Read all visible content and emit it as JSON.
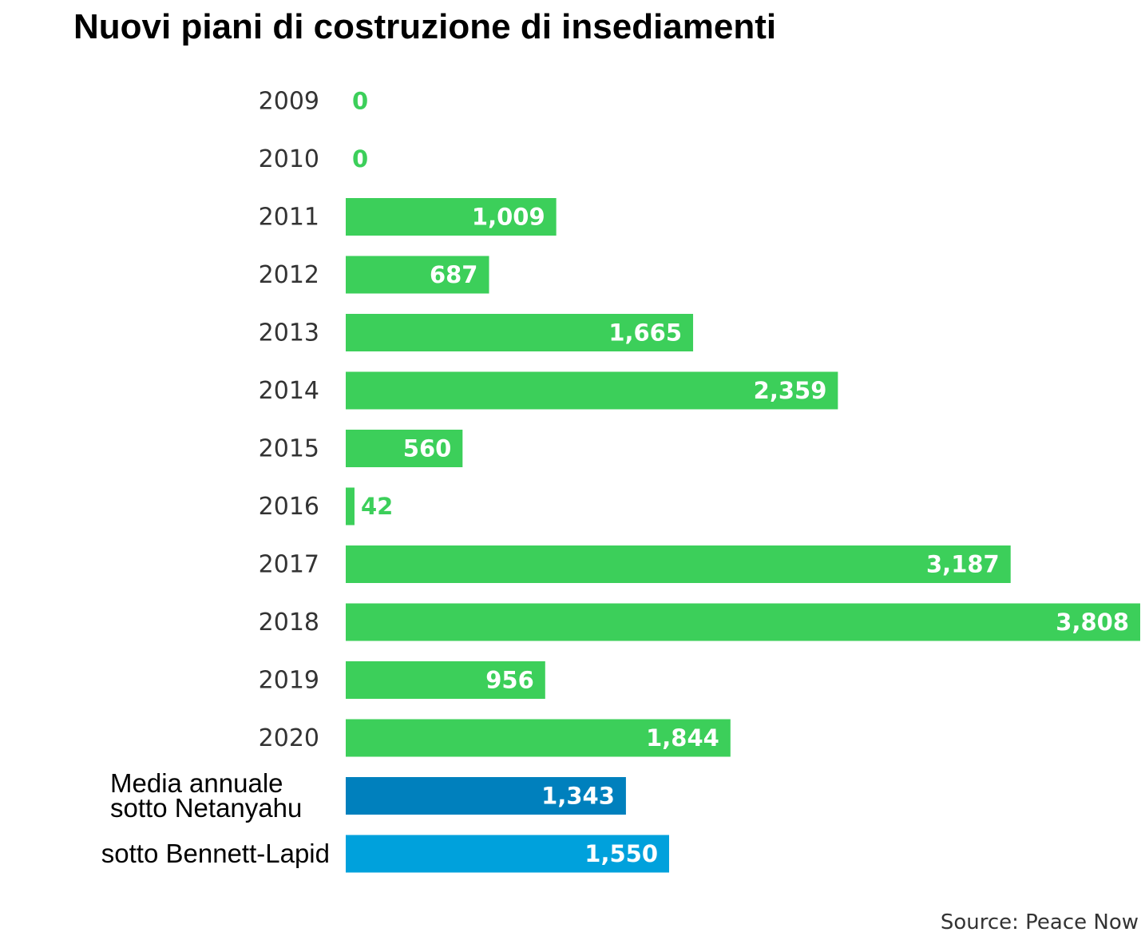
{
  "chart_data": {
    "type": "bar",
    "orientation": "horizontal",
    "title": "Nuovi piani di costruzione di insediamenti",
    "source": "Source: Peace Now",
    "categories": [
      "2009",
      "2010",
      "2011",
      "2012",
      "2013",
      "2014",
      "2015",
      "2016",
      "2017",
      "2018",
      "2019",
      "2020"
    ],
    "values": [
      0,
      0,
      1009,
      687,
      1665,
      2359,
      560,
      42,
      3187,
      3808,
      956,
      1844
    ],
    "value_labels": [
      "0",
      "0",
      "1,009",
      "687",
      "1,665",
      "2,359",
      "560",
      "42",
      "3,187",
      "3,808",
      "956",
      "1,844"
    ],
    "averages": [
      {
        "label_lines": [
          "Media annuale",
          "sotto Netanyahu"
        ],
        "value": 1343,
        "value_label": "1,343",
        "color": "#0080bd"
      },
      {
        "label_lines": [
          "sotto Bennett-Lapid"
        ],
        "value": 1550,
        "value_label": "1,550",
        "color": "#00a1dc"
      }
    ],
    "xlim": [
      0,
      3808
    ],
    "grid": false,
    "legend": "none",
    "colors": {
      "bar": "#3ccf5a",
      "label_inside": "#ffffff",
      "label_outside": "#3ccf5a"
    }
  }
}
